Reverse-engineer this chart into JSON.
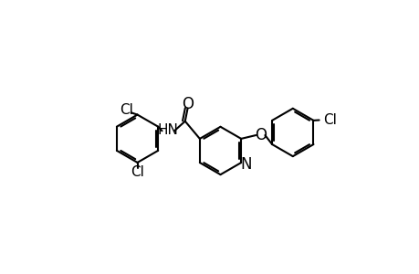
{
  "background_color": "#ffffff",
  "line_color": "#000000",
  "line_width": 1.5,
  "dbo": 0.055,
  "font_size": 11,
  "fig_width": 4.6,
  "fig_height": 3.0,
  "dpi": 100,
  "xlim": [
    -4.5,
    4.5
  ],
  "ylim": [
    -3.0,
    3.0
  ],
  "ring_r": 0.68
}
